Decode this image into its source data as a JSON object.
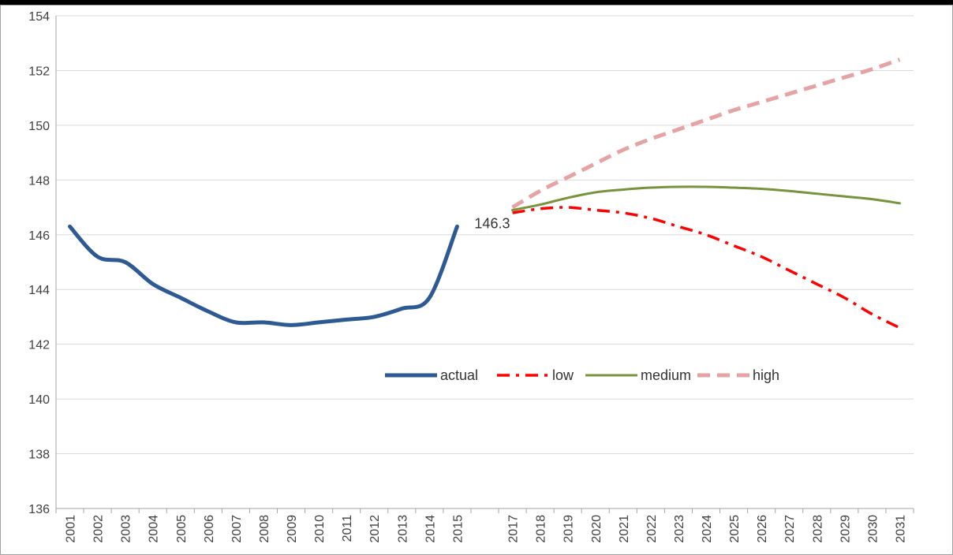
{
  "chart_data": {
    "type": "line",
    "title": "",
    "xlabel": "",
    "ylabel": "",
    "ylim": [
      136,
      154
    ],
    "yticks": [
      136,
      138,
      140,
      142,
      144,
      146,
      148,
      150,
      152,
      154
    ],
    "categories": [
      "2001",
      "2002",
      "2003",
      "2004",
      "2005",
      "2006",
      "2007",
      "2008",
      "2009",
      "2010",
      "2011",
      "2012",
      "2013",
      "2014",
      "2015",
      "",
      "2017",
      "2018",
      "2019",
      "2020",
      "2021",
      "2022",
      "2023",
      "2024",
      "2025",
      "2026",
      "2027",
      "2028",
      "2029",
      "2030",
      "2031"
    ],
    "grid": true,
    "legend_position": "center",
    "series": [
      {
        "name": "actual",
        "color": "#2E5A94",
        "dash": "solid",
        "values": [
          146.3,
          145.2,
          145.0,
          144.2,
          143.7,
          143.2,
          142.8,
          142.8,
          142.7,
          142.8,
          142.9,
          143.0,
          143.3,
          143.7,
          146.3,
          null,
          null,
          null,
          null,
          null,
          null,
          null,
          null,
          null,
          null,
          null,
          null,
          null,
          null,
          null,
          null
        ]
      },
      {
        "name": "low",
        "color": "#FF0000",
        "dash": "dashdot",
        "values": [
          null,
          null,
          null,
          null,
          null,
          null,
          null,
          null,
          null,
          null,
          null,
          null,
          null,
          null,
          null,
          null,
          146.8,
          146.95,
          147.0,
          146.9,
          146.8,
          146.6,
          146.3,
          146.0,
          145.6,
          145.2,
          144.7,
          144.2,
          143.7,
          143.1,
          142.6
        ]
      },
      {
        "name": "medium",
        "color": "#77933C",
        "dash": "solid",
        "values": [
          null,
          null,
          null,
          null,
          null,
          null,
          null,
          null,
          null,
          null,
          null,
          null,
          null,
          null,
          null,
          null,
          146.9,
          147.1,
          147.35,
          147.55,
          147.65,
          147.72,
          147.75,
          147.75,
          147.72,
          147.68,
          147.6,
          147.5,
          147.4,
          147.3,
          147.15
        ]
      },
      {
        "name": "high",
        "color": "#E6A3A3",
        "dash": "dash",
        "values": [
          null,
          null,
          null,
          null,
          null,
          null,
          null,
          null,
          null,
          null,
          null,
          null,
          null,
          null,
          null,
          null,
          147.0,
          147.6,
          148.1,
          148.6,
          149.1,
          149.5,
          149.85,
          150.2,
          150.55,
          150.85,
          151.15,
          151.45,
          151.75,
          152.05,
          152.4
        ]
      }
    ],
    "annotations": [
      {
        "text": "146.3",
        "x": "2015",
        "y": 146.3
      }
    ]
  }
}
